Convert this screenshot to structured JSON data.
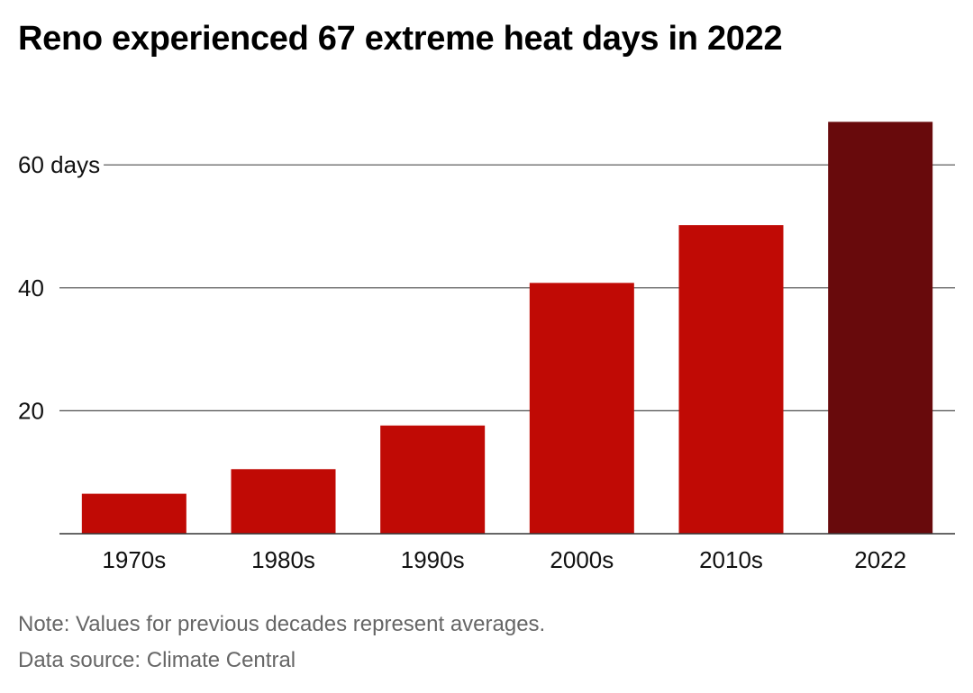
{
  "title": "Reno experienced 67 extreme heat days in 2022",
  "note": "Note: Values for previous decades represent averages.",
  "source": "Data source: Climate Central",
  "colors": {
    "bar": "#c00a05",
    "highlight": "#680a0c",
    "grid": "#4d4d4d"
  },
  "chart_data": {
    "type": "bar",
    "categories": [
      "1970s",
      "1980s",
      "1990s",
      "2000s",
      "2010s",
      "2022"
    ],
    "values": [
      6.5,
      10.5,
      17.6,
      40.8,
      50.2,
      67
    ],
    "highlight_index": 5,
    "ylim": [
      0,
      67
    ],
    "y_ticks": [
      {
        "value": 20,
        "label": "20"
      },
      {
        "value": 40,
        "label": "40"
      },
      {
        "value": 60,
        "label": "60 days"
      }
    ],
    "grid": true,
    "title": "Reno experienced 67 extreme heat days in 2022",
    "xlabel": "",
    "ylabel": ""
  }
}
